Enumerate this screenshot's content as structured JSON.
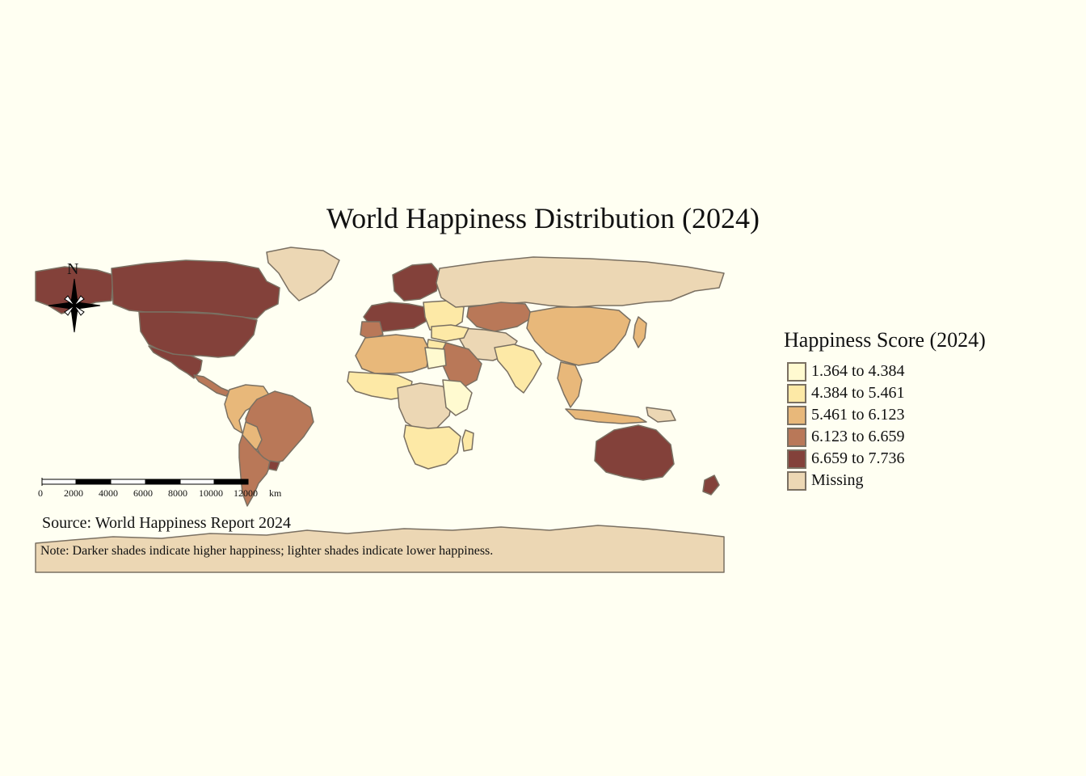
{
  "title": "World Happiness Distribution (2024)",
  "legend": {
    "title": "Happiness Score (2024)",
    "items": [
      {
        "label": "1.364 to 4.384",
        "color": "#fffad0"
      },
      {
        "label": "4.384 to 5.461",
        "color": "#fde9a6"
      },
      {
        "label": "5.461 to 6.123",
        "color": "#e8b87a"
      },
      {
        "label": "6.123 to 6.659",
        "color": "#b97858"
      },
      {
        "label": "6.659 to 7.736",
        "color": "#83413a"
      },
      {
        "label": "Missing",
        "color": "#ecd7b4"
      }
    ]
  },
  "source": "Source: World Happiness Report 2024",
  "note": "Note: Darker shades indicate higher happiness; lighter shades indicate lower happiness.",
  "scale_bar": {
    "ticks": [
      "0",
      "2000",
      "4000",
      "6000",
      "8000",
      "10000",
      "12000"
    ],
    "unit": "km"
  },
  "north_arrow": {
    "label": "N"
  },
  "colors": {
    "background": "#fffff2",
    "border": "#7a7062",
    "ocean": "#fffff2"
  }
}
